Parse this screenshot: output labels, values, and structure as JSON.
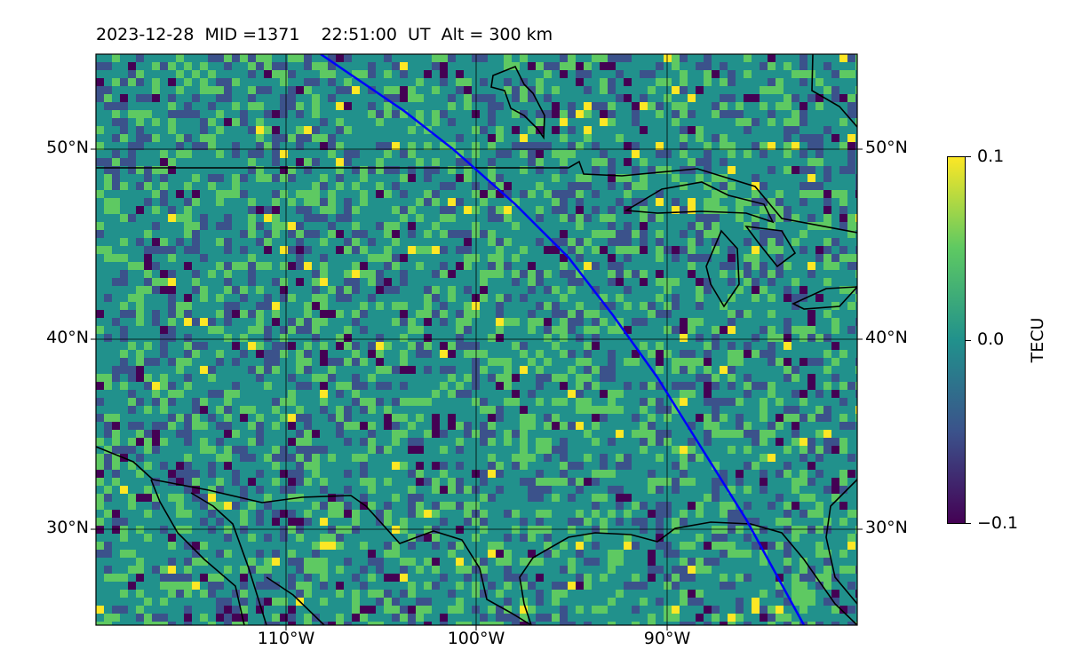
{
  "title": "2023-12-28  MID =1371    22:51:00  UT  Alt = 300 km",
  "map": {
    "lon_range": [
      -120,
      -80
    ],
    "lat_range": [
      25,
      55
    ],
    "lat_labels": [
      "50°N",
      "40°N",
      "30°N"
    ],
    "lon_labels": [
      "110°W",
      "100°W",
      "90°W"
    ],
    "gridlines": true,
    "track_color": "#0000ff",
    "coastline_color": "#000000"
  },
  "colorbar": {
    "title": "TECU",
    "range": [
      -0.1,
      0.1
    ],
    "tick_labels": [
      "0.1",
      "0.0",
      "−0.1"
    ],
    "colormap": "viridis",
    "colors": [
      "#440154",
      "#3b528b",
      "#21918c",
      "#5ec962",
      "#fde725"
    ]
  }
}
